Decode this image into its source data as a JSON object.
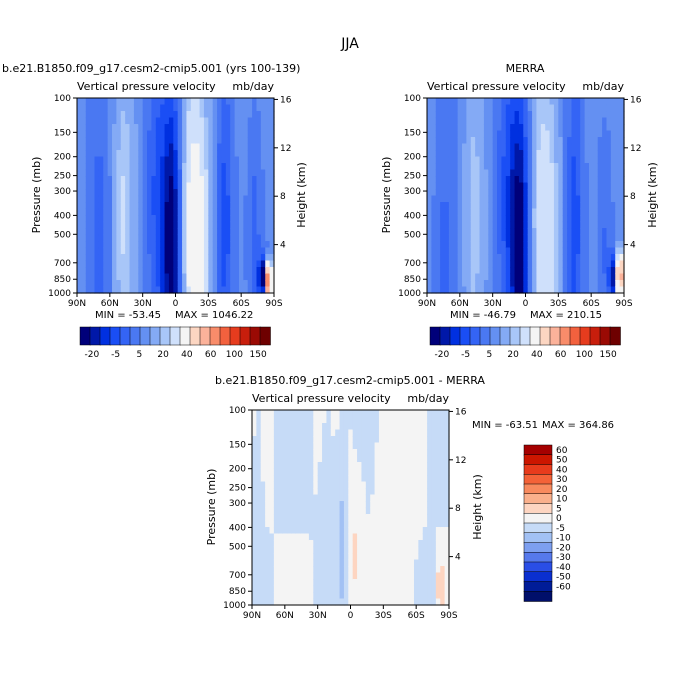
{
  "figure": {
    "title": "JJA"
  },
  "scales": {
    "pressure_ticks": [
      100,
      150,
      200,
      250,
      300,
      400,
      500,
      700,
      850,
      1000
    ],
    "height_ticks_km": [
      4,
      8,
      12,
      16
    ],
    "lat_ticks": [
      {
        "lat": 90,
        "label": "90N"
      },
      {
        "lat": 60,
        "label": "60N"
      },
      {
        "lat": 30,
        "label": "30N"
      },
      {
        "lat": 0,
        "label": "0"
      },
      {
        "lat": -30,
        "label": "30S"
      },
      {
        "lat": -60,
        "label": "60S"
      },
      {
        "lat": -90,
        "label": "90S"
      }
    ]
  },
  "palettes": {
    "abs": {
      "levels": [
        "-20",
        "-5",
        "5",
        "20",
        "40",
        "60",
        "100",
        "150"
      ],
      "colors": [
        "#00007a",
        "#0018a8",
        "#0030e0",
        "#1a4ef5",
        "#3464f5",
        "#4a78f2",
        "#6490f2",
        "#84aaf5",
        "#a8c6f8",
        "#cfe0fb",
        "#f4f4f4",
        "#fcd6c2",
        "#fbb29a",
        "#f88c6a",
        "#f2613e",
        "#e63c1e",
        "#c81e0c",
        "#9a0a04",
        "#6e0000"
      ]
    },
    "diff": {
      "levels": [
        "60",
        "50",
        "40",
        "30",
        "20",
        "10",
        "5",
        "0",
        "-5",
        "-10",
        "-20",
        "-30",
        "-40",
        "-50",
        "-60"
      ],
      "colors": [
        "#a50000",
        "#cc1600",
        "#e83b1c",
        "#f46238",
        "#f88a5e",
        "#fab08c",
        "#fdd5c1",
        "#f4f4f4",
        "#c6dbf7",
        "#a2c1f4",
        "#7d9ff0",
        "#5679ec",
        "#2a4ee6",
        "#0a2fd0",
        "#001c98",
        "#000f6a"
      ]
    }
  },
  "chart_data": [
    {
      "type": "heatmap",
      "title": "b.e21.B1850.f09_g17.cesm2-cmip5.001 (yrs 100-139)",
      "subtitle": "Vertical pressure velocity",
      "units": "mb/day",
      "ylabel": "Pressure (mb)",
      "y2label": "Height (km)",
      "x_range": [
        90,
        -90
      ],
      "y_range": [
        100,
        1000
      ],
      "y_scale": "log",
      "min_label": "MIN = -53.45",
      "max_label": "MAX = 1046.22",
      "min": -53.45,
      "max": 1046.22,
      "colorbar": "abs",
      "features": [
        {
          "lat": 3,
          "p": 600,
          "dlat": 6,
          "dlogp": 0.55,
          "v": -32
        },
        {
          "lat": 17,
          "p": 300,
          "dlat": 7,
          "dlogp": 0.5,
          "v": -10
        },
        {
          "lat": -18,
          "p": 500,
          "dlat": 10,
          "dlogp": 0.55,
          "v": 18
        },
        {
          "lat": -45,
          "p": 450,
          "dlat": 5,
          "dlogp": 0.5,
          "v": -12
        },
        {
          "lat": -72,
          "p": 520,
          "dlat": 5,
          "dlogp": 0.45,
          "v": -10
        },
        {
          "lat": 48,
          "p": 400,
          "dlat": 6,
          "dlogp": 0.5,
          "v": 8
        },
        {
          "lat": 70,
          "p": 500,
          "dlat": 6,
          "dlogp": 0.5,
          "v": -6
        },
        {
          "lat": -85,
          "p": 860,
          "dlat": 2,
          "dlogp": 0.06,
          "v": 70
        },
        {
          "lat": -80,
          "p": 830,
          "dlat": 3,
          "dlogp": 0.08,
          "v": -30
        }
      ]
    },
    {
      "type": "heatmap",
      "title": "MERRA",
      "subtitle": "Vertical pressure velocity",
      "units": "mb/day",
      "ylabel": "Pressure (mb)",
      "y2label": "Height (km)",
      "x_range": [
        90,
        -90
      ],
      "y_range": [
        100,
        1000
      ],
      "y_scale": "log",
      "min_label": "MIN = -46.79",
      "max_label": "MAX = 210.15",
      "min": -46.79,
      "max": 210.15,
      "colorbar": "abs",
      "features": [
        {
          "lat": 5,
          "p": 600,
          "dlat": 6,
          "dlogp": 0.55,
          "v": -30
        },
        {
          "lat": 17,
          "p": 300,
          "dlat": 7,
          "dlogp": 0.5,
          "v": -10
        },
        {
          "lat": -18,
          "p": 480,
          "dlat": 10,
          "dlogp": 0.55,
          "v": 12
        },
        {
          "lat": -45,
          "p": 450,
          "dlat": 5,
          "dlogp": 0.5,
          "v": -12
        },
        {
          "lat": -72,
          "p": 520,
          "dlat": 5,
          "dlogp": 0.45,
          "v": -8
        },
        {
          "lat": 48,
          "p": 400,
          "dlat": 6,
          "dlogp": 0.5,
          "v": 6
        },
        {
          "lat": 75,
          "p": 700,
          "dlat": 5,
          "dlogp": 0.3,
          "v": -8
        },
        {
          "lat": -86,
          "p": 820,
          "dlat": 2,
          "dlogp": 0.08,
          "v": 60
        },
        {
          "lat": -80,
          "p": 830,
          "dlat": 3,
          "dlogp": 0.08,
          "v": -25
        }
      ]
    },
    {
      "type": "heatmap",
      "title": "b.e21.B1850.f09_g17.cesm2-cmip5.001 - MERRA",
      "subtitle": "Vertical pressure velocity",
      "units": "mb/day",
      "ylabel": "Pressure (mb)",
      "y2label": "Height (km)",
      "x_range": [
        90,
        -90
      ],
      "y_range": [
        100,
        1000
      ],
      "y_scale": "log",
      "min_label": "MIN = -63.51",
      "max_label": "MAX = 364.86",
      "min": -63.51,
      "max": 364.86,
      "colorbar": "diff",
      "features": [
        {
          "lat": 8,
          "p": 450,
          "dlat": 3,
          "dlogp": 0.35,
          "v": -6
        },
        {
          "lat": -3,
          "p": 650,
          "dlat": 3,
          "dlogp": 0.25,
          "v": 5
        },
        {
          "lat": -8,
          "p": 350,
          "dlat": 3,
          "dlogp": 0.15,
          "v": 4
        },
        {
          "lat": 20,
          "p": 500,
          "dlat": 5,
          "dlogp": 0.5,
          "v": -3
        },
        {
          "lat": -30,
          "p": 550,
          "dlat": 6,
          "dlogp": 0.5,
          "v": 3
        },
        {
          "lat": 85,
          "p": 500,
          "dlat": 3,
          "dlogp": 0.6,
          "v": -3
        },
        {
          "lat": -50,
          "p": 400,
          "dlat": 5,
          "dlogp": 0.5,
          "v": 3
        },
        {
          "lat": -82,
          "p": 800,
          "dlat": 3,
          "dlogp": 0.1,
          "v": 8
        },
        {
          "lat": -75,
          "p": 780,
          "dlat": 3,
          "dlogp": 0.1,
          "v": -5
        }
      ]
    }
  ]
}
